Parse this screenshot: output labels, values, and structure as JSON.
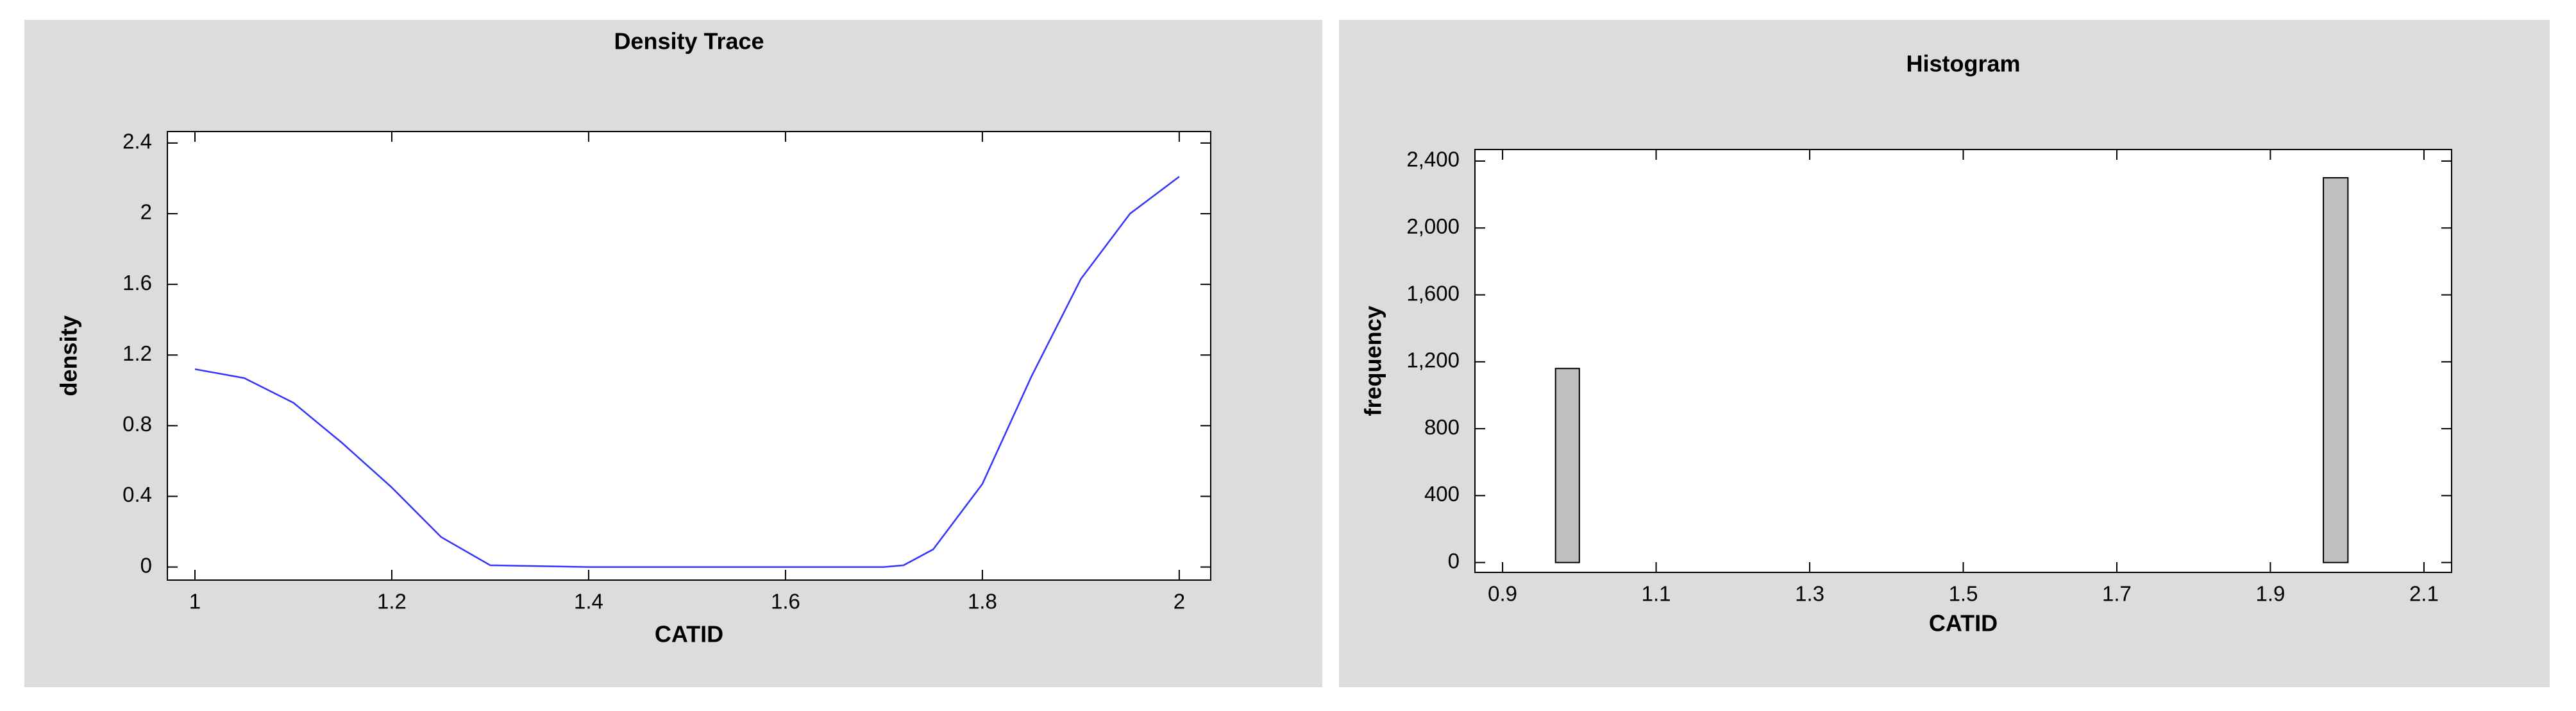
{
  "chart_data": [
    {
      "type": "line",
      "title": "Density Trace",
      "x_label": "CATID",
      "y_label": "density",
      "x": [
        1,
        1.05,
        1.1,
        1.15,
        1.2,
        1.25,
        1.3,
        1.4,
        1.5,
        1.6,
        1.7,
        1.72,
        1.75,
        1.8,
        1.85,
        1.9,
        1.95,
        2
      ],
      "series": [
        {
          "name": "density",
          "color": "#3333ff",
          "values": [
            1.12,
            1.07,
            0.93,
            0.7,
            0.45,
            0.17,
            0.01,
            0,
            0,
            0,
            0,
            0.01,
            0.1,
            0.47,
            1.08,
            1.63,
            2.0,
            2.21
          ]
        }
      ],
      "xlim": [
        0.972,
        2.032
      ],
      "xticks": [
        1,
        1.2,
        1.4,
        1.6,
        1.8,
        2
      ],
      "ylim": [
        -0.074,
        2.465
      ],
      "yticks": [
        0,
        0.4,
        0.8,
        1.2,
        1.6,
        2,
        2.4
      ]
    },
    {
      "type": "histogram",
      "title": "Histogram",
      "x_label": "CATID",
      "y_label": "frequency",
      "bins": [
        0.969,
        1.0,
        1.969,
        2.001
      ],
      "counts": [
        1160,
        0,
        2300
      ],
      "color": "#c0c0c0",
      "xlim": [
        0.864,
        2.136
      ],
      "xticks": [
        0.9,
        1.1,
        1.3,
        1.5,
        1.7,
        1.9,
        2.1
      ],
      "ylim": [
        -59,
        2469
      ],
      "yticks": [
        0,
        400,
        800,
        {
          "value": 1200,
          "label": "1,200"
        },
        {
          "value": 1600,
          "label": "1,600"
        },
        {
          "value": 2000,
          "label": "2,000"
        },
        {
          "value": 2400,
          "label": "2,400"
        }
      ]
    }
  ]
}
